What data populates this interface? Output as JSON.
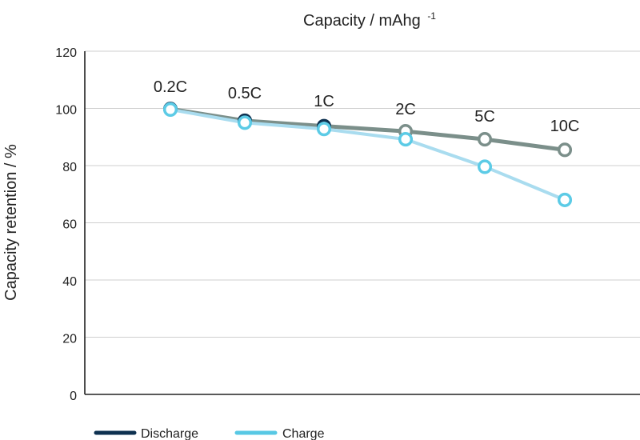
{
  "chart_data": {
    "type": "line",
    "title": "Capacity / mAhg",
    "title_superscript": "-1",
    "xlabel": "",
    "ylabel": "Capacity retention / %",
    "ylim": [
      0,
      120
    ],
    "yticks": [
      0,
      20,
      40,
      60,
      80,
      100,
      120
    ],
    "grid": true,
    "legend_position": "bottom-left",
    "categories": [
      "0.2C",
      "0.5C",
      "1C",
      "2C",
      "5C",
      "10C"
    ],
    "series": [
      {
        "name": "Discharge",
        "color": "#7b8f8a",
        "legend_color": "#0e3150",
        "values": [
          99.8,
          95.7,
          93.8,
          92.0,
          89.2,
          85.5
        ]
      },
      {
        "name": "Charge",
        "color": "#a9dcef",
        "legend_color": "#58c8e4",
        "values": [
          99.6,
          95.0,
          92.8,
          89.2,
          79.6,
          68.0
        ]
      }
    ]
  }
}
